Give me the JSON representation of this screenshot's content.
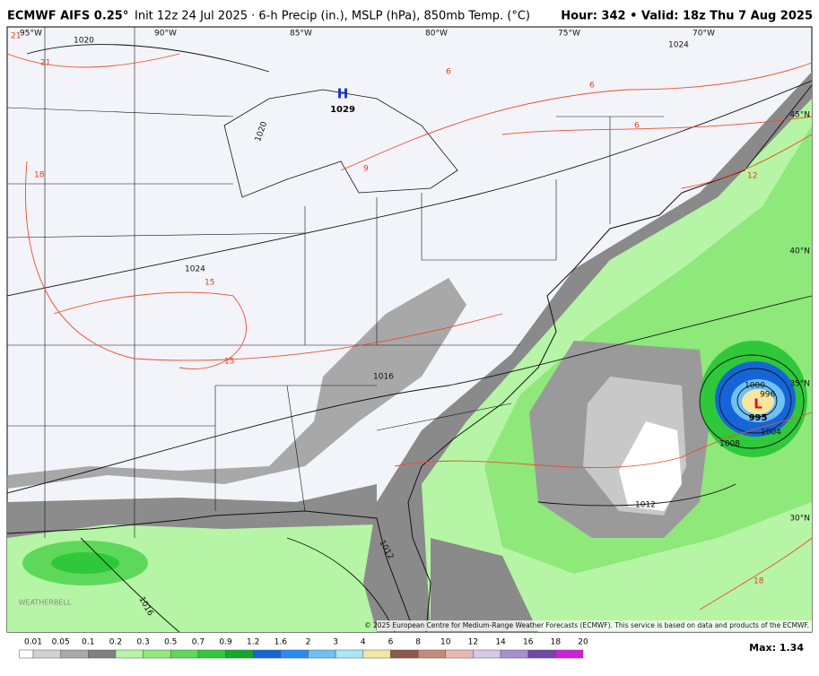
{
  "header": {
    "title_bold": "ECMWF AIFS 0.25°",
    "title_rest": "Init 12z 24 Jul 2025 · 6-h Precip (in.), MSLP (hPa), 850mb Temp. (°C)",
    "valid": "Hour: 342 • Valid: 18z Thu 7 Aug 2025"
  },
  "map": {
    "longitudes": [
      "95°W",
      "90°W",
      "85°W",
      "80°W",
      "75°W",
      "70°W"
    ],
    "latitudes": [
      "45°N",
      "40°N",
      "35°N",
      "30°N"
    ],
    "high": {
      "symbol": "H",
      "pressure": "1029"
    },
    "low": {
      "symbol": "L",
      "pressure": "995"
    },
    "isobar_labels": [
      "1020",
      "1024",
      "1016",
      "1012",
      "1008",
      "1004",
      "1000",
      "996",
      "1012",
      "1016",
      "1024",
      "1020"
    ],
    "temperature_labels": [
      "21",
      "18",
      "15",
      "15",
      "9",
      "6",
      "6",
      "6",
      "12",
      "18",
      "21"
    ],
    "watermark": "WEATHERBELL",
    "copyright": "© 2025 European Centre for Medium-Range Weather Forecasts (ECMWF). This service is based on data and products of the ECMWF."
  },
  "legend": {
    "labels": [
      "0.01",
      "0.05",
      "0.1",
      "0.2",
      "0.3",
      "0.5",
      "0.7",
      "0.9",
      "1.2",
      "1.6",
      "2",
      "3",
      "4",
      "6",
      "8",
      "10",
      "12",
      "14",
      "16",
      "18",
      "20"
    ],
    "colors": [
      "#ffffff",
      "#d2d2d2",
      "#a9a9a9",
      "#808080",
      "#b5f5a5",
      "#8ee87a",
      "#5ed85a",
      "#2fc83a",
      "#14a82a",
      "#1466d8",
      "#2a8cf0",
      "#6ec0f5",
      "#a8e6f8",
      "#f5e6a0",
      "#8a5a4a",
      "#c58a7a",
      "#e8b8b0",
      "#d8c8e8",
      "#a890d0",
      "#7048a8",
      "#d020d8"
    ],
    "max": "Max: 1.34"
  }
}
